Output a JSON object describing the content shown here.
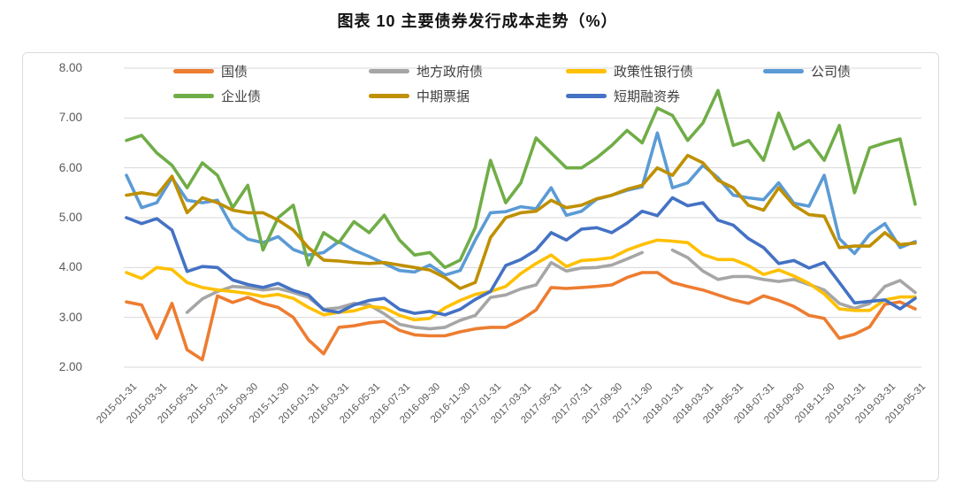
{
  "title": "图表 10 主要债券发行成本走势（%）",
  "chart_data": {
    "type": "line",
    "title": "图表 10 主要债券发行成本走势（%）",
    "xlabel": "",
    "ylabel": "",
    "ylim": [
      2,
      8
    ],
    "y_tick_labels": [
      "8.00",
      "7.00",
      "6.00",
      "5.00",
      "4.00",
      "3.00",
      "2.00"
    ],
    "grid": true,
    "legend_position": "top-inside",
    "points_per_x_tick": 2,
    "x_tick_labels": [
      "2015-01-31",
      "2015-03-31",
      "2015-05-31",
      "2015-07-31",
      "2015-09-30",
      "2015-11-30",
      "2016-01-31",
      "2016-03-31",
      "2016-05-31",
      "2016-07-31",
      "2016-09-30",
      "2016-11-30",
      "2017-01-31",
      "2017-03-31",
      "2017-05-31",
      "2017-07-31",
      "2017-09-30",
      "2017-11-30",
      "2018-01-31",
      "2018-03-31",
      "2018-05-31",
      "2018-07-31",
      "2018-09-30",
      "2018-11-30",
      "2019-01-31",
      "2019-03-31",
      "2019-05-31"
    ],
    "series": [
      {
        "name": "国债",
        "color": "#ED7D31",
        "values": [
          3.31,
          3.25,
          2.58,
          3.28,
          2.35,
          2.15,
          3.43,
          3.3,
          3.4,
          3.28,
          3.2,
          3.0,
          2.55,
          2.27,
          2.8,
          2.83,
          2.89,
          2.92,
          2.74,
          2.65,
          2.63,
          2.63,
          2.71,
          2.77,
          2.8,
          2.8,
          2.95,
          3.15,
          3.6,
          3.58,
          3.6,
          3.62,
          3.65,
          3.8,
          3.9,
          3.9,
          3.7,
          3.62,
          3.55,
          3.45,
          3.35,
          3.28,
          3.43,
          3.34,
          3.22,
          3.04,
          2.98,
          2.58,
          2.66,
          2.81,
          3.26,
          3.31,
          3.17
        ]
      },
      {
        "name": "地方政府债",
        "color": "#A6A6A6",
        "values": [
          null,
          null,
          null,
          null,
          3.1,
          3.37,
          3.52,
          3.62,
          3.6,
          3.55,
          3.58,
          3.5,
          3.4,
          3.16,
          3.19,
          3.28,
          3.25,
          3.07,
          2.86,
          2.8,
          2.77,
          2.8,
          2.94,
          3.04,
          3.4,
          3.45,
          3.57,
          3.65,
          4.1,
          3.93,
          3.99,
          4.0,
          4.05,
          4.17,
          4.3,
          null,
          4.35,
          4.2,
          3.93,
          3.76,
          3.82,
          3.82,
          3.76,
          3.72,
          3.76,
          3.66,
          3.55,
          3.28,
          3.18,
          3.28,
          3.62,
          3.74,
          3.5
        ]
      },
      {
        "name": "政策性银行债",
        "color": "#FFC000",
        "values": [
          3.9,
          3.78,
          4.0,
          3.96,
          3.7,
          3.6,
          3.55,
          3.52,
          3.48,
          3.42,
          3.46,
          3.38,
          3.2,
          3.05,
          3.1,
          3.13,
          3.22,
          3.19,
          3.04,
          2.95,
          2.98,
          3.19,
          3.34,
          3.46,
          3.52,
          3.62,
          3.88,
          4.08,
          4.25,
          4.02,
          4.14,
          4.16,
          4.2,
          4.35,
          4.46,
          4.55,
          4.53,
          4.5,
          4.26,
          4.16,
          4.16,
          4.04,
          3.86,
          3.95,
          3.83,
          3.68,
          3.47,
          3.17,
          3.14,
          3.14,
          3.35,
          3.41,
          3.41
        ]
      },
      {
        "name": "公司债",
        "color": "#5B9BD5",
        "values": [
          5.85,
          5.2,
          5.3,
          5.8,
          5.35,
          5.3,
          5.35,
          4.8,
          4.57,
          4.5,
          4.62,
          4.36,
          4.25,
          4.3,
          4.52,
          4.35,
          4.22,
          4.08,
          3.94,
          3.91,
          4.05,
          3.85,
          3.94,
          4.55,
          5.1,
          5.12,
          5.22,
          5.18,
          5.6,
          5.05,
          5.13,
          5.37,
          5.45,
          5.55,
          5.62,
          6.7,
          5.6,
          5.7,
          6.05,
          5.8,
          5.45,
          5.4,
          5.36,
          5.7,
          5.29,
          5.23,
          5.85,
          4.58,
          4.28,
          4.67,
          4.88,
          4.4,
          4.52
        ]
      },
      {
        "name": "企业债",
        "color": "#70AD47",
        "values": [
          6.55,
          6.65,
          6.3,
          6.05,
          5.6,
          6.1,
          5.85,
          5.2,
          5.65,
          4.35,
          5.0,
          5.25,
          4.05,
          4.7,
          4.5,
          4.92,
          4.7,
          5.05,
          4.55,
          4.25,
          4.3,
          4.0,
          4.15,
          4.8,
          6.15,
          5.3,
          5.7,
          6.6,
          6.3,
          6.0,
          6.0,
          6.2,
          6.45,
          6.75,
          6.5,
          7.2,
          7.05,
          6.55,
          6.9,
          7.55,
          6.45,
          6.55,
          6.15,
          7.1,
          6.38,
          6.55,
          6.15,
          6.85,
          5.5,
          6.4,
          6.5,
          6.58,
          5.27
        ]
      },
      {
        "name": "中期票据",
        "color": "#BF9000",
        "values": [
          5.45,
          5.5,
          5.45,
          5.83,
          5.1,
          5.4,
          5.3,
          5.15,
          5.1,
          5.1,
          4.95,
          4.75,
          4.4,
          4.15,
          4.13,
          4.1,
          4.08,
          4.1,
          4.05,
          4.0,
          3.95,
          3.8,
          3.58,
          3.7,
          4.6,
          5.0,
          5.1,
          5.13,
          5.35,
          5.2,
          5.25,
          5.38,
          5.45,
          5.57,
          5.65,
          6.0,
          5.85,
          6.25,
          6.1,
          5.75,
          5.6,
          5.25,
          5.15,
          5.6,
          5.25,
          5.06,
          5.03,
          4.4,
          4.43,
          4.43,
          4.7,
          4.46,
          4.49
        ]
      },
      {
        "name": "短期融资券",
        "color": "#4472C4",
        "values": [
          5.0,
          4.88,
          4.98,
          4.75,
          3.92,
          4.02,
          4.0,
          3.75,
          3.66,
          3.6,
          3.68,
          3.54,
          3.45,
          3.15,
          3.1,
          3.25,
          3.34,
          3.38,
          3.16,
          3.08,
          3.12,
          3.05,
          3.16,
          3.36,
          3.52,
          4.04,
          4.16,
          4.35,
          4.7,
          4.55,
          4.77,
          4.8,
          4.7,
          4.89,
          5.13,
          5.04,
          5.4,
          5.24,
          5.3,
          4.95,
          4.85,
          4.58,
          4.4,
          4.08,
          4.14,
          3.99,
          4.1,
          3.7,
          3.29,
          3.32,
          3.35,
          3.17,
          3.38
        ]
      }
    ],
    "legend_rows": [
      [
        0,
        1,
        2,
        3
      ],
      [
        4,
        5,
        6
      ]
    ]
  }
}
